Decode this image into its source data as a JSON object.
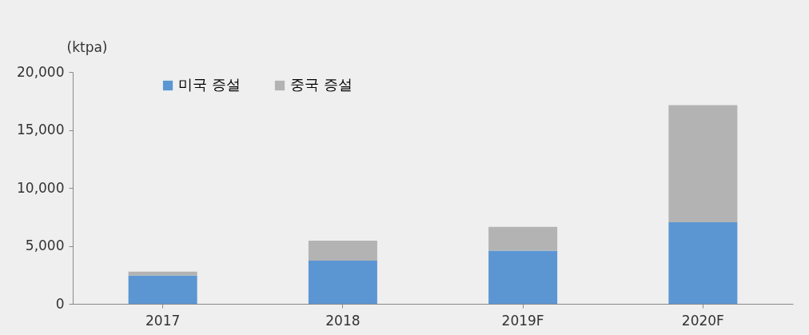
{
  "chart_data": {
    "type": "bar",
    "stacked": true,
    "ylabel": "(ktpa)",
    "categories": [
      "2017",
      "2018",
      "2019F",
      "2020F"
    ],
    "series": [
      {
        "name": "미국 증설",
        "color": "#5b96d3",
        "values": [
          2450,
          3720,
          4580,
          7040
        ]
      },
      {
        "name": "중국 증설",
        "color": "#b3b3b3",
        "values": [
          330,
          1730,
          2060,
          10100
        ]
      }
    ],
    "ylim": [
      0,
      20000
    ],
    "yticks": [
      {
        "value": 0,
        "label": "0"
      },
      {
        "value": 5000,
        "label": "5,000"
      },
      {
        "value": 10000,
        "label": "10,000"
      },
      {
        "value": 15000,
        "label": "15,000"
      },
      {
        "value": 20000,
        "label": "20,000"
      }
    ],
    "grid": false,
    "legend": "top left"
  }
}
